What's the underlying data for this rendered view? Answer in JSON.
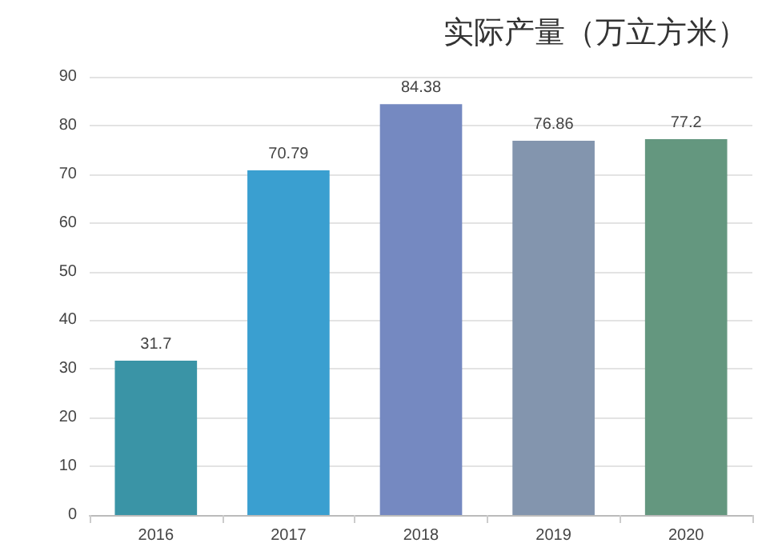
{
  "chart_data": {
    "type": "bar",
    "title": "实际产量（万立方米）",
    "categories": [
      "2016",
      "2017",
      "2018",
      "2019",
      "2020"
    ],
    "values": [
      31.7,
      70.79,
      84.38,
      76.86,
      77.2
    ],
    "colors": [
      "#3a94a6",
      "#3a9fd0",
      "#7589c1",
      "#8395ae",
      "#64977f"
    ],
    "ylim": [
      0,
      90
    ],
    "yticks": [
      0,
      10,
      20,
      30,
      40,
      50,
      60,
      70,
      80,
      90
    ],
    "grid": "y",
    "data_labels": true
  }
}
